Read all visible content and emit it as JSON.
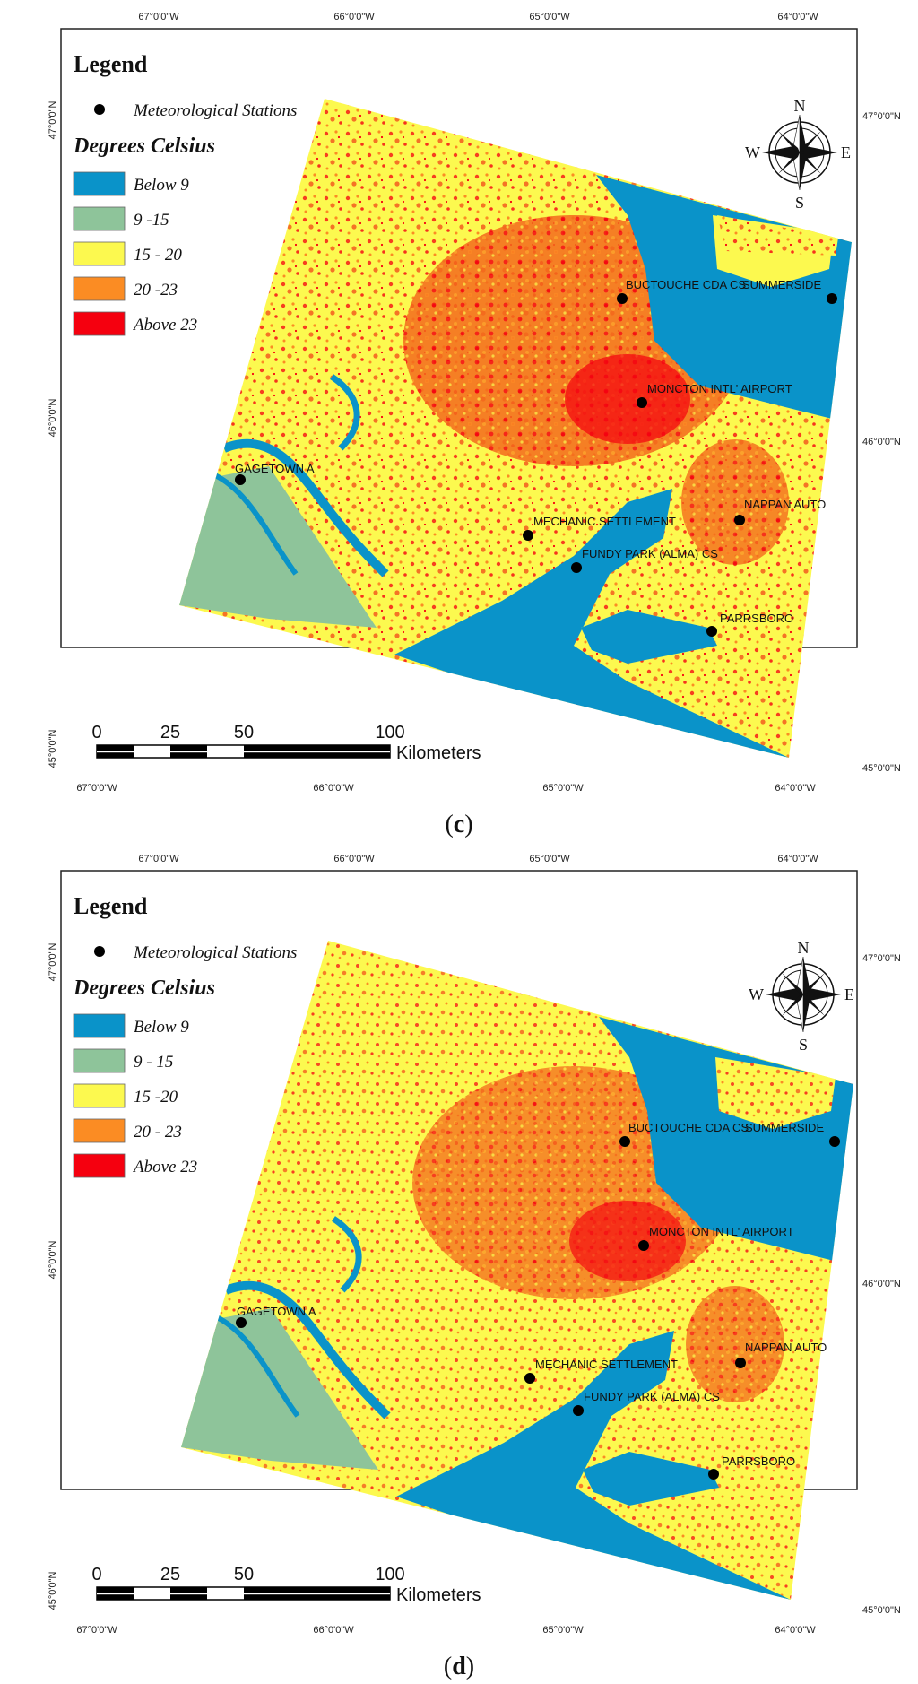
{
  "panels": [
    {
      "id": "c",
      "caption_open": "(",
      "caption_letter": "c",
      "caption_close": ")",
      "legend": {
        "title": "Legend",
        "stations_label": "Meteorological Stations",
        "subtitle": "Degrees Celsius",
        "classes": [
          {
            "label": "Below 9",
            "color": "#0a93c9"
          },
          {
            "label": "9 -15",
            "color": "#8ec49a"
          },
          {
            "label": "15 - 20",
            "color": "#fcf94f"
          },
          {
            "label": "20 -23",
            "color": "#fb8c23"
          },
          {
            "label": "Above 23",
            "color": "#f5000f"
          }
        ]
      },
      "top_ticks": [
        "67°0'0\"W",
        "66°0'0\"W",
        "65°0'0\"W",
        "64°0'0\"W"
      ],
      "bottom_ticks": [
        "67°0'0\"W",
        "66°0'0\"W",
        "65°0'0\"W",
        "64°0'0\"W"
      ],
      "left_ticks": [
        "47°0'0\"N",
        "46°0'0\"N",
        "45°0'0\"N"
      ],
      "right_ticks": [
        "47°0'0\"N",
        "46°0'0\"N",
        "45°0'0\"N"
      ],
      "stations": [
        "BUCTOUCHE CDA CS",
        "SUMMERSIDE",
        "MONCTON INTL' AIRPORT",
        "GAGETOWN A",
        "NAPPAN AUTO",
        "MECHANIC SETTLEMENT",
        "FUNDY PARK (ALMA) CS",
        "PARRSBORO"
      ],
      "scale": {
        "ticks": [
          "0",
          "25",
          "50",
          "100"
        ],
        "unit": "Kilometers"
      },
      "compass": {
        "n": "N",
        "s": "S",
        "e": "E",
        "w": "W"
      }
    },
    {
      "id": "d",
      "caption_open": "(",
      "caption_letter": "d",
      "caption_close": ")",
      "legend": {
        "title": "Legend",
        "stations_label": "Meteorological Stations",
        "subtitle": "Degrees Celsius",
        "classes": [
          {
            "label": "Below 9",
            "color": "#0a93c9"
          },
          {
            "label": "9 - 15",
            "color": "#8ec49a"
          },
          {
            "label": "15 -20",
            "color": "#fcf94f"
          },
          {
            "label": "20 - 23",
            "color": "#fb8c23"
          },
          {
            "label": "Above 23",
            "color": "#f5000f"
          }
        ]
      },
      "top_ticks": [
        "67°0'0\"W",
        "66°0'0\"W",
        "65°0'0\"W",
        "64°0'0\"W"
      ],
      "bottom_ticks": [
        "67°0'0\"W",
        "66°0'0\"W",
        "65°0'0\"W",
        "64°0'0\"W"
      ],
      "left_ticks": [
        "47°0'0\"N",
        "46°0'0\"N",
        "45°0'0\"N"
      ],
      "right_ticks": [
        "47°0'0\"N",
        "46°0'0\"N",
        "45°0'0\"N"
      ],
      "stations": [
        "BUCTOUCHE CDA CS",
        "SUMMERSIDE",
        "MONCTON INTL' AIRPORT",
        "GAGETOWN A",
        "NAPPAN AUTO",
        "MECHANIC SETTLEMENT",
        "FUNDY PARK (ALMA) CS",
        "PARRSBORO"
      ],
      "scale": {
        "ticks": [
          "0",
          "25",
          "50",
          "100"
        ],
        "unit": "Kilometers"
      },
      "compass": {
        "n": "N",
        "s": "S",
        "e": "E",
        "w": "W"
      }
    }
  ]
}
